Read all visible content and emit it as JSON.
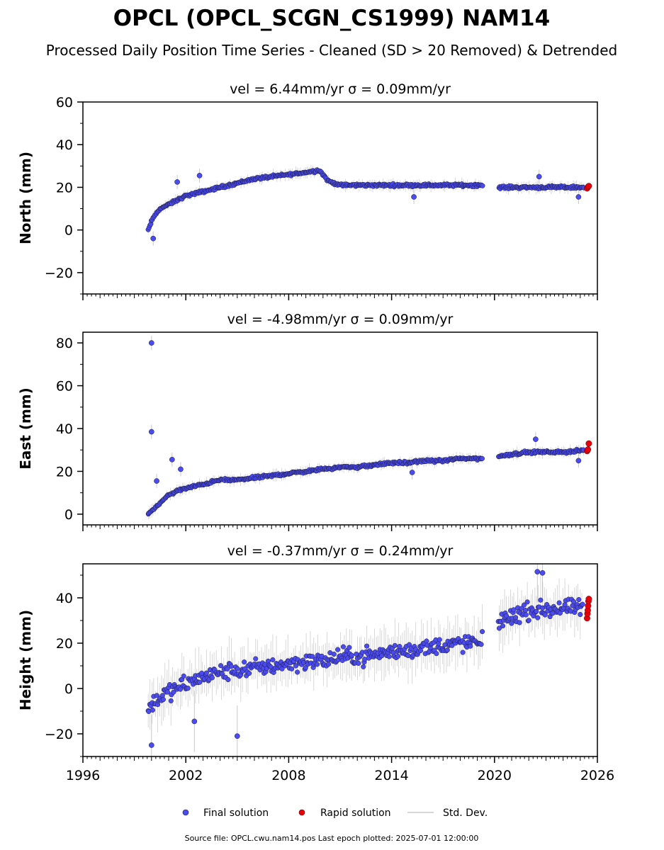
{
  "title": "OPCL (OPCL_SCGN_CS1999) NAM14",
  "subtitle": "Processed Daily Position Time Series - Cleaned (SD > 20 Removed) & Detrended",
  "legend": {
    "placement": "bottom-center",
    "items": [
      {
        "label": "Final solution",
        "color": "#4b4bf0",
        "marker": "circle"
      },
      {
        "label": "Rapid solution",
        "color": "#e8000b",
        "marker": "circle"
      },
      {
        "label": "Std. Dev.",
        "color": "#c8c8c8",
        "marker": "line"
      }
    ]
  },
  "footer": "Source file: OPCL.cwu.nam14.pos  Last epoch plotted: 2025-07-01 12:00:00",
  "colors": {
    "final": "#4b4bf0",
    "final_edge": "#1a1a40",
    "rapid": "#e8000b",
    "stddev": "#b0b0b0"
  },
  "chart_data": [
    {
      "type": "scatter",
      "panel": "north",
      "title": "vel = 6.44mm/yr   σ = 0.09mm/yr",
      "ylabel": "North (mm)",
      "xlim": [
        1996,
        2026
      ],
      "ylim": [
        -30,
        60
      ],
      "yticks": [
        -20,
        0,
        20,
        40,
        60
      ],
      "xticks": [
        1996,
        2002,
        2008,
        2014,
        2020,
        2026
      ],
      "show_xtick_labels": false,
      "grid": false,
      "series": [
        {
          "name": "Final solution",
          "role": "final",
          "x": [
            1999.8,
            2000.0,
            2000.2,
            2000.5,
            2001.0,
            2001.5,
            2002.0,
            2002.5,
            2003.0,
            2004.0,
            2005.0,
            2006.0,
            2007.0,
            2008.0,
            2009.0,
            2009.8,
            2010.3,
            2011.0,
            2012.0,
            2013.0,
            2014.0,
            2015.0,
            2016.0,
            2017.0,
            2018.0,
            2019.2,
            2020.3,
            2021.0,
            2022.0,
            2023.0,
            2024.0,
            2025.2
          ],
          "y": [
            0,
            4,
            7,
            10,
            12,
            14,
            16,
            17,
            18,
            20,
            22,
            24,
            25,
            26,
            27,
            28,
            23,
            21,
            21,
            21,
            21,
            21,
            21,
            21,
            21,
            21,
            20,
            20,
            20,
            20,
            20,
            20
          ]
        },
        {
          "name": "Rapid solution",
          "role": "rapid",
          "x": [
            2025.4,
            2025.45,
            2025.5
          ],
          "y": [
            19.5,
            20.2,
            20.6
          ]
        }
      ],
      "outliers": [
        {
          "x": 2000.1,
          "y": -4
        },
        {
          "x": 2001.5,
          "y": 22.5
        },
        {
          "x": 2002.8,
          "y": 25.5
        },
        {
          "x": 2015.3,
          "y": 15.5
        },
        {
          "x": 2022.6,
          "y": 25
        },
        {
          "x": 2024.9,
          "y": 15.5
        }
      ]
    },
    {
      "type": "scatter",
      "panel": "east",
      "title": "vel = -4.98mm/yr   σ = 0.09mm/yr",
      "ylabel": "East (mm)",
      "xlim": [
        1996,
        2026
      ],
      "ylim": [
        -5,
        85
      ],
      "yticks": [
        0,
        20,
        40,
        60,
        80
      ],
      "xticks": [
        1996,
        2002,
        2008,
        2014,
        2020,
        2026
      ],
      "show_xtick_labels": false,
      "grid": false,
      "series": [
        {
          "name": "Final solution",
          "role": "final",
          "x": [
            1999.8,
            2000.2,
            2000.6,
            2001.0,
            2001.5,
            2002.0,
            2003.0,
            2004.0,
            2005.0,
            2006.0,
            2007.0,
            2008.0,
            2009.0,
            2010.0,
            2011.0,
            2012.0,
            2013.0,
            2014.0,
            2015.0,
            2016.0,
            2017.0,
            2018.0,
            2019.2,
            2020.3,
            2021.0,
            2022.0,
            2023.0,
            2024.0,
            2025.2
          ],
          "y": [
            0,
            3,
            6,
            9,
            11,
            12,
            14,
            16,
            16,
            17,
            18,
            19,
            20,
            21,
            22,
            22,
            23,
            24,
            24,
            25,
            25,
            26,
            26,
            27,
            28,
            29,
            29,
            29,
            30
          ]
        },
        {
          "name": "Rapid solution",
          "role": "rapid",
          "x": [
            2025.4,
            2025.45,
            2025.5
          ],
          "y": [
            29.5,
            30.2,
            33
          ]
        }
      ],
      "outliers": [
        {
          "x": 2000.0,
          "y": 80
        },
        {
          "x": 2000.0,
          "y": 38.5
        },
        {
          "x": 2001.2,
          "y": 25.5
        },
        {
          "x": 2001.7,
          "y": 21
        },
        {
          "x": 2000.3,
          "y": 15.5
        },
        {
          "x": 2015.2,
          "y": 19.5
        },
        {
          "x": 2022.4,
          "y": 35
        },
        {
          "x": 2024.9,
          "y": 25
        }
      ]
    },
    {
      "type": "scatter",
      "panel": "height",
      "title": "vel = -0.37mm/yr   σ = 0.24mm/yr",
      "ylabel": "Height (mm)",
      "xlim": [
        1996,
        2026
      ],
      "ylim": [
        -30,
        55
      ],
      "yticks": [
        -20,
        0,
        20,
        40
      ],
      "xticks": [
        1996,
        2002,
        2008,
        2014,
        2020,
        2026
      ],
      "show_xtick_labels": true,
      "grid": false,
      "series": [
        {
          "name": "Final solution",
          "role": "final",
          "x": [
            1999.8,
            2000.2,
            2000.6,
            2001.0,
            2001.5,
            2002.0,
            2003.0,
            2004.0,
            2005.0,
            2006.0,
            2007.0,
            2008.0,
            2009.0,
            2010.0,
            2011.0,
            2012.0,
            2013.0,
            2014.0,
            2015.0,
            2016.0,
            2017.0,
            2018.0,
            2019.2,
            2020.3,
            2021.0,
            2022.0,
            2023.0,
            2024.0,
            2025.2
          ],
          "y": [
            -10,
            -5,
            -3,
            -2,
            0,
            2,
            5,
            7,
            8,
            9,
            10,
            11,
            12,
            12,
            14,
            14,
            15,
            16,
            17,
            18,
            19,
            20,
            20,
            30,
            32,
            34,
            35,
            35,
            36
          ]
        },
        {
          "name": "Rapid solution",
          "role": "rapid",
          "x": [
            2025.4,
            2025.42,
            2025.44,
            2025.46,
            2025.48,
            2025.5
          ],
          "y": [
            31,
            33,
            34.5,
            36.5,
            38.5,
            39.5
          ]
        }
      ],
      "outliers": [
        {
          "x": 2005.0,
          "y": -21
        },
        {
          "x": 2022.5,
          "y": 51.5
        },
        {
          "x": 2022.8,
          "y": 51
        },
        {
          "x": 2000.0,
          "y": -25
        },
        {
          "x": 2002.5,
          "y": -14.5
        }
      ]
    }
  ]
}
